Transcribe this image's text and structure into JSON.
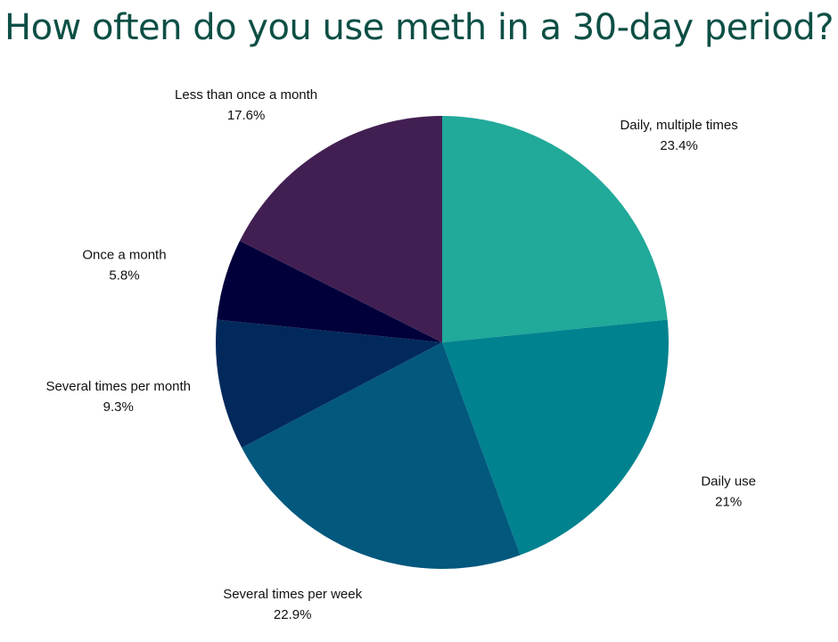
{
  "chart_data": {
    "type": "pie",
    "title": "How often do you use meth in a 30-day period?",
    "start": "top, clockwise",
    "categories": [
      "Daily, multiple times",
      "Daily use",
      "Several times per week",
      "Several times per month",
      "Once a month",
      "Less than once a month"
    ],
    "values": [
      23.4,
      21,
      22.9,
      9.3,
      5.8,
      17.6
    ],
    "value_labels": [
      "23.4%",
      "21%",
      "22.9%",
      "9.3%",
      "5.8%",
      "17.6%"
    ],
    "colors": [
      "#21a99a",
      "#00828f",
      "#03587e",
      "#02295c",
      "#02003a",
      "#421f52"
    ]
  }
}
